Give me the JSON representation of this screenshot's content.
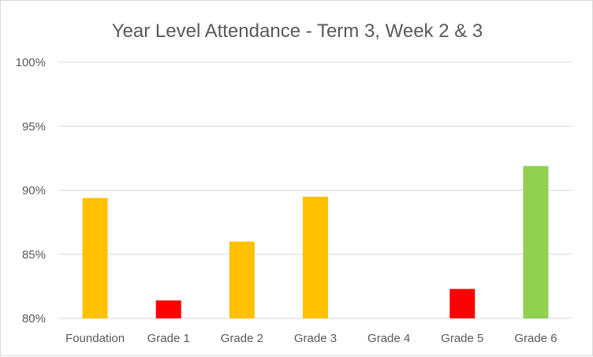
{
  "chart_data": {
    "type": "bar",
    "title": "Year Level Attendance - Term 3, Week 2 & 3",
    "xlabel": "",
    "ylabel": "",
    "categories": [
      "Foundation",
      "Grade 1",
      "Grade 2",
      "Grade 3",
      "Grade 4",
      "Grade 5",
      "Grade 6"
    ],
    "values": [
      89.4,
      81.4,
      86.0,
      89.5,
      null,
      82.3,
      91.9
    ],
    "bar_colors": [
      "#FFC000",
      "#FF0000",
      "#FFC000",
      "#FFC000",
      "#FFC000",
      "#FF0000",
      "#92D050"
    ],
    "ylim": [
      80,
      100
    ],
    "yticks": [
      80,
      85,
      90,
      95,
      100
    ],
    "ytick_labels": [
      "80%",
      "85%",
      "90%",
      "95%",
      "100%"
    ],
    "grid": true,
    "legend": "none"
  }
}
